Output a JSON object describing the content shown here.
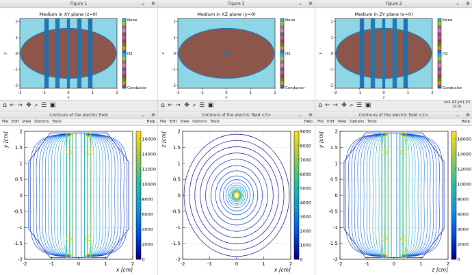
{
  "windows": {
    "fig1": {
      "window_title": "Figure 1",
      "plot_title": "Medium in XY plane (z=0)",
      "xlabel": "x",
      "ylabel": "y"
    },
    "fig3": {
      "window_title": "Figure 3",
      "plot_title": "Medium in XZ plane (y=0)",
      "xlabel": "x",
      "ylabel": "z"
    },
    "fig2": {
      "window_title": "Figure 2",
      "plot_title": "Medium in ZY plane (x=0)",
      "xlabel": "z",
      "ylabel": "y",
      "coord_line1": "x=1.43 y=1.53",
      "coord_line2": "[2.0]"
    },
    "c1": {
      "window_title": "Contours of the electric field",
      "xlabel": "x [cm]",
      "ylabel": "y [cm]"
    },
    "c3": {
      "window_title": "Contours of the electric field <3>",
      "xlabel": "x [cm]",
      "ylabel": "z [cm]"
    },
    "c2": {
      "window_title": "Contours of the electric field <2>",
      "xlabel": "z [cm]",
      "ylabel": "y [cm]"
    }
  },
  "menu": {
    "file": "File",
    "edit": "Edit",
    "view": "View",
    "options": "Options",
    "tools": "Tools",
    "help": "Help"
  },
  "colorbar_media": {
    "top": "None",
    "mid": "H2",
    "bottom": "Conductor"
  },
  "icons": [
    "home-icon",
    "back-icon",
    "forward-icon",
    "pan-icon",
    "zoom-icon",
    "configure-icon",
    "save-icon"
  ],
  "colors": {
    "gas": "#8c564b",
    "background": "#8ed6e6",
    "conductor": "#1f77b4"
  },
  "chart_data": [
    {
      "type": "heatmap",
      "title": "Medium in XY plane (z=0)",
      "xlabel": "x",
      "ylabel": "y",
      "xlim": [
        -2,
        2
      ],
      "ylim": [
        -2.2,
        2.2
      ],
      "xticks": [
        -2,
        -1,
        0,
        1,
        2
      ],
      "yticks": [
        -2,
        -1,
        0,
        1,
        2
      ],
      "colorbar": [
        "None",
        "H2",
        "Conductor"
      ]
    },
    {
      "type": "heatmap",
      "title": "Medium in XZ plane (y=0)",
      "xlabel": "x",
      "ylabel": "z",
      "xlim": [
        -2,
        2
      ],
      "ylim": [
        -2.2,
        2.2
      ],
      "xticks": [
        -2,
        -1,
        0,
        1,
        2
      ],
      "yticks": [
        -2,
        -1,
        0,
        1,
        2
      ],
      "colorbar": [
        "None",
        "H2",
        "Conductor"
      ]
    },
    {
      "type": "heatmap",
      "title": "Medium in ZY plane (x=0)",
      "xlabel": "z",
      "ylabel": "y",
      "xlim": [
        -2,
        2
      ],
      "ylim": [
        -2.2,
        2.2
      ],
      "xticks": [
        -2,
        -1,
        0,
        1,
        2
      ],
      "yticks": [
        -2,
        -1,
        0,
        1,
        2
      ],
      "colorbar": [
        "None",
        "H2",
        "Conductor"
      ]
    },
    {
      "type": "line",
      "xlabel": "x [cm]",
      "ylabel": "y [cm]",
      "xlim": [
        -2,
        2
      ],
      "ylim": [
        -2,
        2
      ],
      "xticks": [
        -2,
        -1,
        0,
        1,
        2
      ],
      "yticks": [
        -2,
        -1.5,
        -1,
        -0.5,
        0,
        0.5,
        1,
        1.5,
        2
      ],
      "colorbar_range": [
        0,
        17000
      ],
      "colorbar_ticks": [
        0,
        2000,
        4000,
        6000,
        8000,
        10000,
        12000,
        14000,
        16000
      ]
    },
    {
      "type": "line",
      "xlabel": "x [cm]",
      "ylabel": "z [cm]",
      "xlim": [
        -2,
        2
      ],
      "ylim": [
        -2,
        2
      ],
      "xticks": [
        -2,
        -1,
        0,
        1,
        2
      ],
      "yticks": [
        -2,
        -1.5,
        -1,
        -0.5,
        0,
        0.5,
        1,
        1.5,
        2
      ],
      "colorbar_range": [
        0,
        9000
      ],
      "colorbar_ticks": [
        0,
        1000,
        2000,
        3000,
        4000,
        5000,
        6000,
        7000,
        8000,
        9000
      ]
    },
    {
      "type": "line",
      "xlabel": "z [cm]",
      "ylabel": "y [cm]",
      "xlim": [
        -2,
        2
      ],
      "ylim": [
        -2,
        2
      ],
      "xticks": [
        -2,
        -1,
        0,
        1,
        2
      ],
      "yticks": [
        -2,
        -1.5,
        -1,
        -0.5,
        0,
        0.5,
        1,
        1.5,
        2
      ],
      "colorbar_range": [
        0,
        17000
      ],
      "colorbar_ticks": [
        0,
        2000,
        4000,
        6000,
        8000,
        10000,
        12000,
        14000,
        16000
      ]
    }
  ]
}
